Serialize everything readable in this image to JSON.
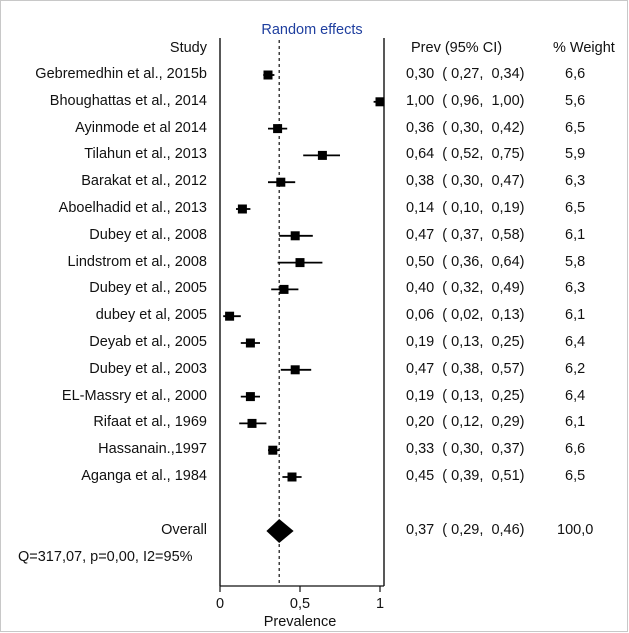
{
  "chart_data": {
    "type": "forest",
    "title": "Random effects",
    "xlabel": "Prevalence",
    "xlim": [
      0,
      1
    ],
    "xticks": [
      "0",
      "0,5",
      "1"
    ],
    "reference_line": 0.37,
    "columns": {
      "study": "Study",
      "estimate": "Prev (95% CI)",
      "weight": "% Weight"
    },
    "studies": [
      {
        "name": "Gebremedhin et al., 2015b",
        "prev": 0.3,
        "lo": 0.27,
        "hi": 0.34,
        "text": "0,30  ( 0,27,  0,34)",
        "weight": "6,6"
      },
      {
        "name": "Bhoughattas et al., 2014",
        "prev": 1.0,
        "lo": 0.96,
        "hi": 1.0,
        "text": "1,00  ( 0,96,  1,00)",
        "weight": "5,6"
      },
      {
        "name": "Ayinmode et al 2014",
        "prev": 0.36,
        "lo": 0.3,
        "hi": 0.42,
        "text": "0,36  ( 0,30,  0,42)",
        "weight": "6,5"
      },
      {
        "name": "Tilahun et al., 2013",
        "prev": 0.64,
        "lo": 0.52,
        "hi": 0.75,
        "text": "0,64  ( 0,52,  0,75)",
        "weight": "5,9"
      },
      {
        "name": "Barakat et al., 2012",
        "prev": 0.38,
        "lo": 0.3,
        "hi": 0.47,
        "text": "0,38  ( 0,30,  0,47)",
        "weight": "6,3"
      },
      {
        "name": "Aboelhadid et al., 2013",
        "prev": 0.14,
        "lo": 0.1,
        "hi": 0.19,
        "text": "0,14  ( 0,10,  0,19)",
        "weight": "6,5"
      },
      {
        "name": "Dubey et al., 2008",
        "prev": 0.47,
        "lo": 0.37,
        "hi": 0.58,
        "text": "0,47  ( 0,37,  0,58)",
        "weight": "6,1"
      },
      {
        "name": "Lindstrom et al., 2008",
        "prev": 0.5,
        "lo": 0.36,
        "hi": 0.64,
        "text": "0,50  ( 0,36,  0,64)",
        "weight": "5,8"
      },
      {
        "name": "Dubey et al., 2005",
        "prev": 0.4,
        "lo": 0.32,
        "hi": 0.49,
        "text": "0,40  ( 0,32,  0,49)",
        "weight": "6,3"
      },
      {
        "name": "dubey et al,  2005",
        "prev": 0.06,
        "lo": 0.02,
        "hi": 0.13,
        "text": "0,06  ( 0,02,  0,13)",
        "weight": "6,1"
      },
      {
        "name": "Deyab et al., 2005",
        "prev": 0.19,
        "lo": 0.13,
        "hi": 0.25,
        "text": "0,19  ( 0,13,  0,25)",
        "weight": "6,4"
      },
      {
        "name": "Dubey et al., 2003",
        "prev": 0.47,
        "lo": 0.38,
        "hi": 0.57,
        "text": "0,47  ( 0,38,  0,57)",
        "weight": "6,2"
      },
      {
        "name": "EL-Massry et al., 2000",
        "prev": 0.19,
        "lo": 0.13,
        "hi": 0.25,
        "text": "0,19  ( 0,13,  0,25)",
        "weight": "6,4"
      },
      {
        "name": "Rifaat et al., 1969",
        "prev": 0.2,
        "lo": 0.12,
        "hi": 0.29,
        "text": "0,20  ( 0,12,  0,29)",
        "weight": "6,1"
      },
      {
        "name": "Hassanain.,1997",
        "prev": 0.33,
        "lo": 0.3,
        "hi": 0.37,
        "text": "0,33  ( 0,30,  0,37)",
        "weight": "6,6"
      },
      {
        "name": "Aganga et al., 1984",
        "prev": 0.45,
        "lo": 0.39,
        "hi": 0.51,
        "text": "0,45  ( 0,39,  0,51)",
        "weight": "6,5"
      }
    ],
    "overall": {
      "name": "Overall",
      "prev": 0.37,
      "lo": 0.29,
      "hi": 0.46,
      "text": "0,37  ( 0,29,  0,46)",
      "weight": "100,0"
    },
    "heterogeneity": "Q=317,07, p=0,00, I2=95%",
    "title_color": "#1f3f9f",
    "mark_color": "#000000"
  }
}
